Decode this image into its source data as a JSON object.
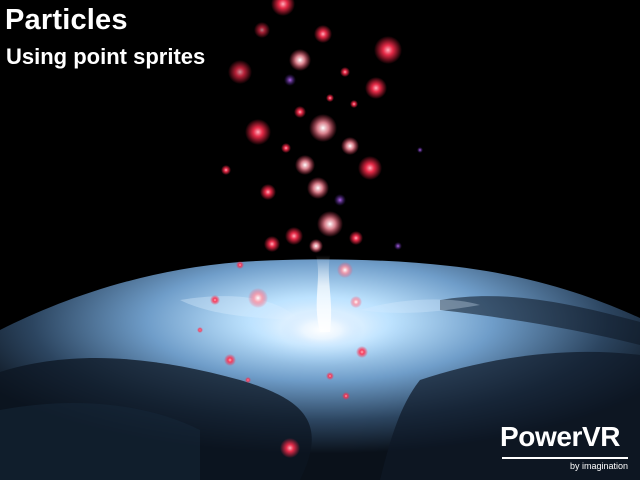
{
  "overlay": {
    "title": "Particles",
    "subtitle": "Using point sprites"
  },
  "logo": {
    "brand": "PowerVR",
    "tagline": "by imagination"
  },
  "colors": {
    "background": "#000000",
    "text": "#ffffff",
    "particle_core": "#ff3050",
    "particle_halo": "#ff8090",
    "particle_violet": "#7030a0",
    "ground_light": "#bfe4ff",
    "ground_mid": "#5f8fbf",
    "ground_dark": "#18283c"
  },
  "scene": {
    "description_icon": "particle-fountain-render"
  }
}
